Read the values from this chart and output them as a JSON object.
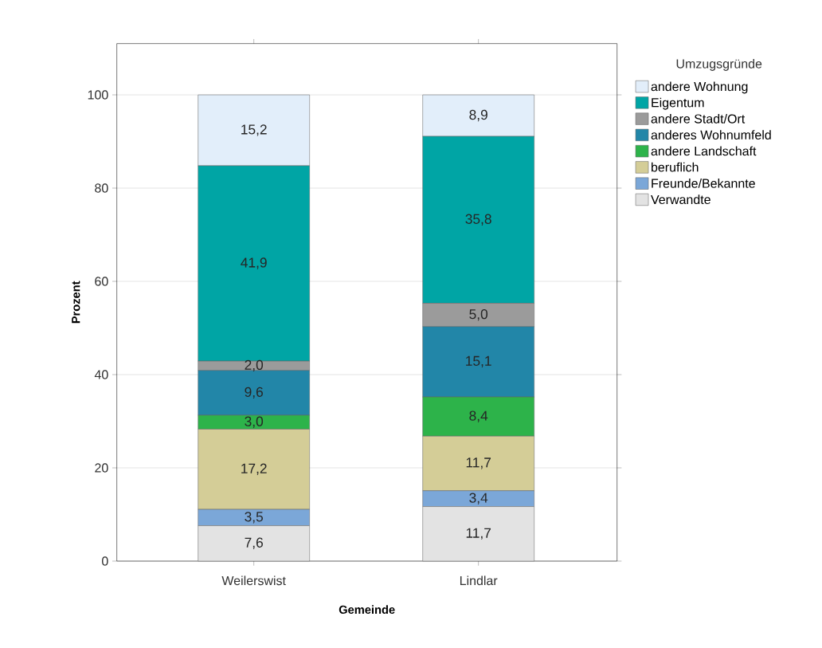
{
  "chart_data": {
    "type": "bar",
    "stacked": true,
    "xlabel": "Gemeinde",
    "ylabel": "Prozent",
    "legend_title": "Umzugsgründe",
    "legend": "right",
    "grid": "y",
    "categories": [
      "Weilerswist",
      "Lindlar"
    ],
    "ylim": [
      0,
      111
    ],
    "yticks": [
      0,
      20,
      40,
      60,
      80,
      100
    ],
    "series": [
      {
        "name": "Verwandte",
        "color": "#e3e3e3",
        "values": [
          7.6,
          11.7
        ],
        "value_labels": [
          "7,6",
          "11,7"
        ]
      },
      {
        "name": "Freunde/Bekannte",
        "color": "#7ba7d8",
        "values": [
          3.5,
          3.4
        ],
        "value_labels": [
          "3,5",
          "3,4"
        ]
      },
      {
        "name": "beruflich",
        "color": "#d4cd97",
        "values": [
          17.2,
          11.7
        ],
        "value_labels": [
          "17,2",
          "11,7"
        ]
      },
      {
        "name": "andere Landschaft",
        "color": "#2db34a",
        "values": [
          3.0,
          8.4
        ],
        "value_labels": [
          "3,0",
          "8,4"
        ]
      },
      {
        "name": "anderes Wohnumfeld",
        "color": "#2286a8",
        "values": [
          9.6,
          15.1
        ],
        "value_labels": [
          "9,6",
          "15,1"
        ]
      },
      {
        "name": "andere Stadt/Ort",
        "color": "#9b9b9b",
        "values": [
          2.0,
          5.0
        ],
        "value_labels": [
          "2,0",
          "5,0"
        ]
      },
      {
        "name": "Eigentum",
        "color": "#00a5a5",
        "values": [
          41.9,
          35.8
        ],
        "value_labels": [
          "41,9",
          "35,8"
        ]
      },
      {
        "name": "andere Wohnung",
        "color": "#e2eefa",
        "values": [
          15.2,
          8.9
        ],
        "value_labels": [
          "15,2",
          "8,9"
        ]
      }
    ]
  }
}
